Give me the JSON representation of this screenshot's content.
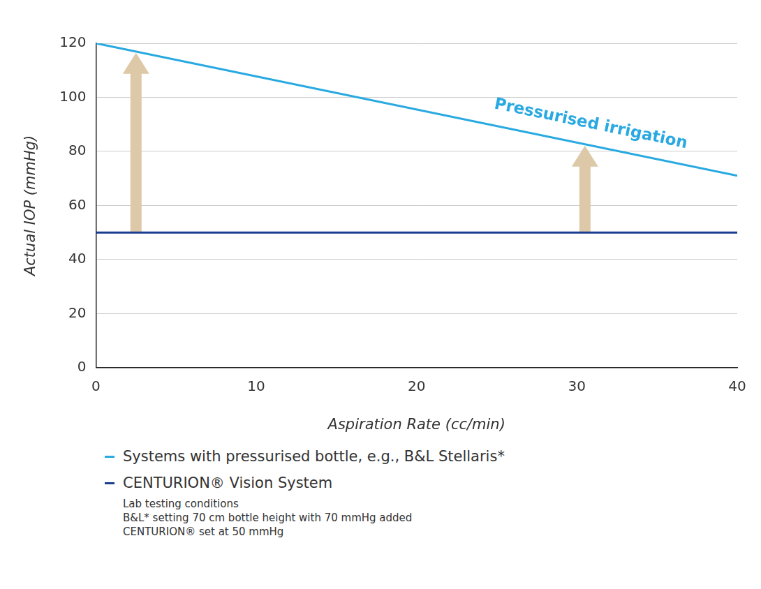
{
  "chart_data": {
    "type": "line",
    "annotation": "Pressurised irrigation",
    "x_label": "Aspiration Rate (cc/min)",
    "y_label": "Actual IOP (mmHg)",
    "x": [
      0,
      40
    ],
    "series": [
      {
        "name": "Systems with pressurised bottle, e.g., B&L Stellaris*",
        "color": "#29a9e1",
        "values": [
          120,
          71
        ]
      },
      {
        "name": "CENTURION® Vision System",
        "color": "#1b3d8f",
        "values": [
          50,
          50
        ]
      }
    ],
    "notes": [
      "Lab testing conditions",
      "B&L* setting 70 cm bottle height with 70 mmHg added",
      "CENTURION® set at 50 mmHg"
    ],
    "xlim": [
      0,
      40
    ],
    "xticks": [
      0,
      10,
      20,
      30,
      40
    ],
    "ylim": [
      0,
      120
    ],
    "yticks": [
      0,
      20,
      40,
      60,
      80,
      100,
      120
    ],
    "grid": true,
    "legend": "bottom"
  }
}
